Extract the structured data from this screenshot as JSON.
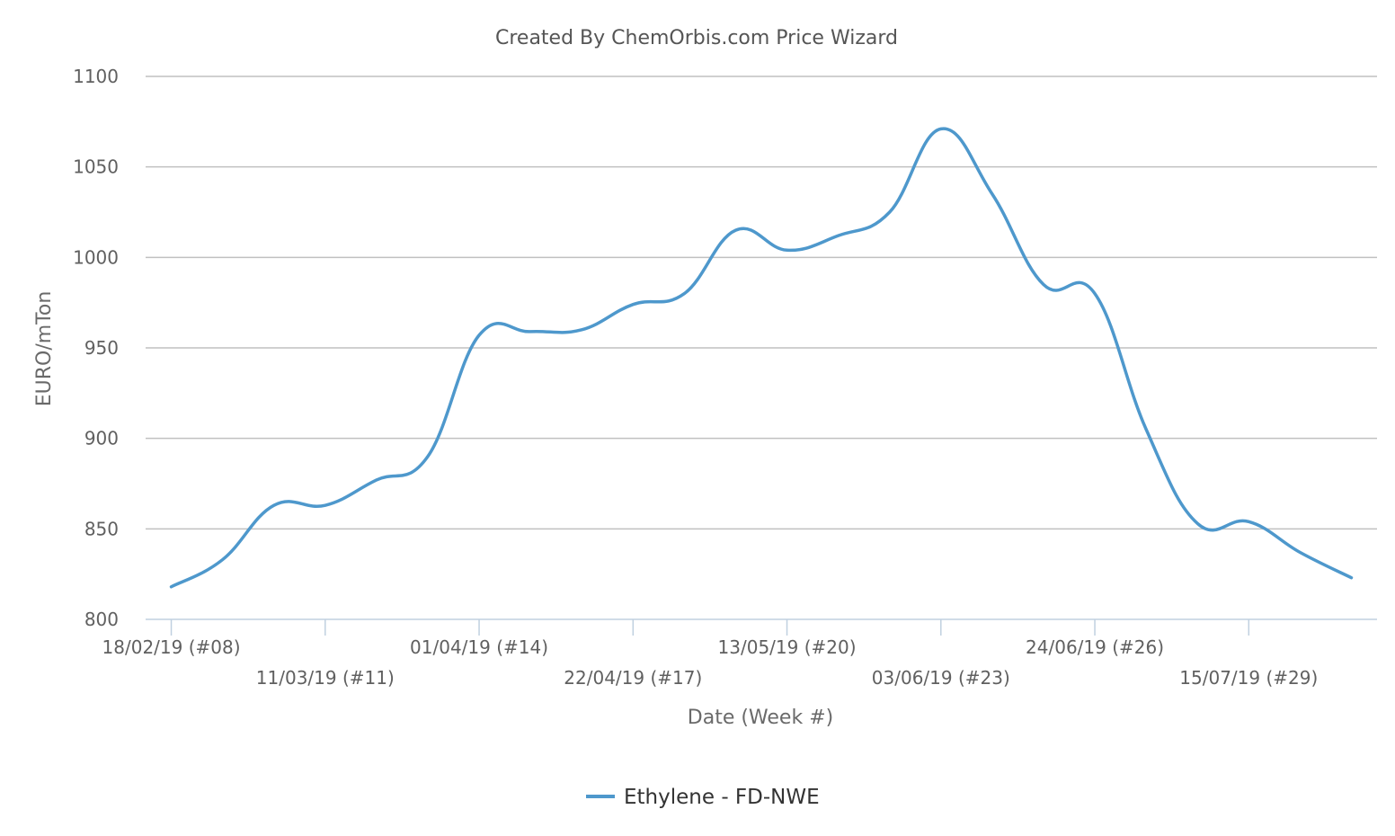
{
  "chart_data": {
    "type": "line",
    "title": "Created By ChemOrbis.com Price Wizard",
    "xlabel": "Date (Week #)",
    "ylabel": "EURO/mTon",
    "ylim": [
      800,
      1100
    ],
    "yticks": [
      800,
      850,
      900,
      950,
      1000,
      1050,
      1100
    ],
    "grid": true,
    "legend_position": "bottom-center",
    "x_tick_labels": [
      "18/02/19 (#08)",
      "11/03/19 (#11)",
      "01/04/19 (#14)",
      "22/04/19 (#17)",
      "13/05/19 (#20)",
      "03/06/19 (#23)",
      "24/06/19 (#26)",
      "15/07/19 (#29)"
    ],
    "x_tick_weeks": [
      8,
      11,
      14,
      17,
      20,
      23,
      26,
      29
    ],
    "xlim": [
      7.5,
      31.5
    ],
    "series": [
      {
        "name": "Ethylene - FD-NWE",
        "color": "#4e98cc",
        "x": [
          8,
          9,
          10,
          11,
          12,
          13,
          14,
          15,
          16,
          17,
          18,
          19,
          20,
          21,
          22,
          23,
          24,
          25,
          26,
          27,
          28,
          29,
          30,
          31
        ],
        "values": [
          818,
          833,
          863,
          863,
          877,
          890,
          957,
          959,
          960,
          974,
          980,
          1015,
          1004,
          1012,
          1025,
          1071,
          1035,
          985,
          980,
          905,
          853,
          854,
          837,
          823
        ]
      }
    ]
  }
}
